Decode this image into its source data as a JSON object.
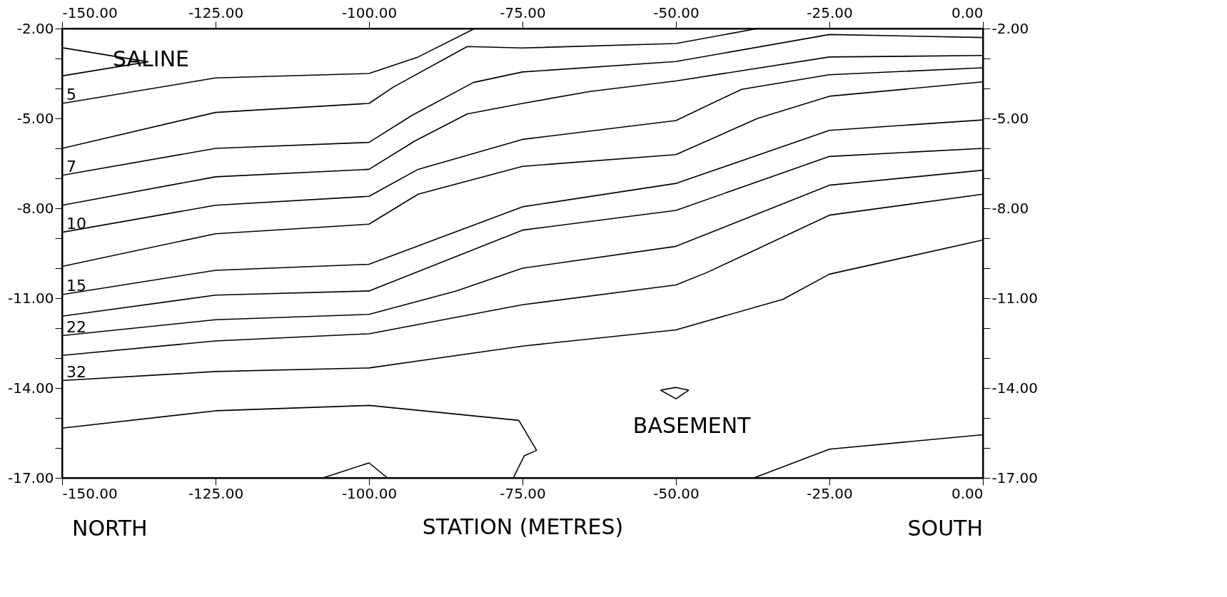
{
  "chart_data": {
    "type": "line",
    "xlabel": "STATION  (METRES)",
    "annotations": [
      "SALINE",
      "BASEMENT",
      "NORTH",
      "SOUTH"
    ],
    "xlim": [
      -150,
      0
    ],
    "ylim": [
      -17,
      -2
    ],
    "x2lim": [
      -150,
      0
    ],
    "y2lim": [
      -17,
      -2
    ],
    "xticks": [
      {
        "value": -150,
        "label": "-150.00"
      },
      {
        "value": -125,
        "label": "-125.00"
      },
      {
        "value": -100,
        "label": "-100.00"
      },
      {
        "value": -75,
        "label": "-75.00"
      },
      {
        "value": -50,
        "label": "-50.00"
      },
      {
        "value": -25,
        "label": "-25.00"
      },
      {
        "value": 0,
        "label": "0.00"
      }
    ],
    "x2ticks": [
      {
        "value": -150,
        "label": "-150.00"
      },
      {
        "value": -125,
        "label": "-125.00"
      },
      {
        "value": -100,
        "label": "-100.00"
      },
      {
        "value": -75,
        "label": "-75.00"
      },
      {
        "value": -50,
        "label": "-50.00"
      },
      {
        "value": -25,
        "label": "-25.00"
      },
      {
        "value": 0,
        "label": "0.00"
      }
    ],
    "yticks": [
      {
        "value": -2,
        "label": "-2.00"
      },
      {
        "value": -3,
        "label": null
      },
      {
        "value": -4,
        "label": null
      },
      {
        "value": -5,
        "label": "-5.00"
      },
      {
        "value": -6,
        "label": null
      },
      {
        "value": -7,
        "label": null
      },
      {
        "value": -8,
        "label": "-8.00"
      },
      {
        "value": -9,
        "label": null
      },
      {
        "value": -10,
        "label": null
      },
      {
        "value": -11,
        "label": "-11.00"
      },
      {
        "value": -12,
        "label": null
      },
      {
        "value": -13,
        "label": null
      },
      {
        "value": -14,
        "label": "-14.00"
      },
      {
        "value": -15,
        "label": null
      },
      {
        "value": -16,
        "label": null
      },
      {
        "value": -17,
        "label": "-17.00"
      }
    ],
    "y2ticks": [
      {
        "value": -2,
        "label": "-2.00"
      },
      {
        "value": -3,
        "label": null
      },
      {
        "value": -4,
        "label": null
      },
      {
        "value": -5,
        "label": "-5.00"
      },
      {
        "value": -6,
        "label": null
      },
      {
        "value": -7,
        "label": null
      },
      {
        "value": -8,
        "label": "-8.00"
      },
      {
        "value": -9,
        "label": null
      },
      {
        "value": -10,
        "label": null
      },
      {
        "value": -11,
        "label": "-11.00"
      },
      {
        "value": -12,
        "label": null
      },
      {
        "value": -13,
        "label": null
      },
      {
        "value": -14,
        "label": "-14.00"
      },
      {
        "value": -15,
        "label": null
      },
      {
        "value": -16,
        "label": null
      },
      {
        "value": -17,
        "label": "-17.00"
      }
    ],
    "grid": false,
    "marker": "none",
    "line_style": "solid",
    "series": [
      {
        "color": "#000000",
        "x": [
          -150,
          -136,
          -150
        ],
        "values": [
          -2.64,
          -3.11,
          -3.58
        ]
      },
      {
        "name": "5",
        "color": "#000000",
        "x": [
          -150,
          -125,
          -100,
          -92,
          -82.8
        ],
        "values": [
          -4.5,
          -3.65,
          -3.5,
          -2.95,
          -2.0
        ]
      },
      {
        "color": "#000000",
        "x": [
          -150,
          -125,
          -100,
          -96,
          -84,
          -75,
          -50,
          -36.7
        ],
        "values": [
          -6.0,
          -4.8,
          -4.5,
          -3.95,
          -2.6,
          -2.65,
          -2.5,
          -2.0
        ]
      },
      {
        "name": "7",
        "color": "#000000",
        "x": [
          -150,
          -125,
          -100,
          -93,
          -83,
          -75,
          -50,
          -25,
          0
        ],
        "values": [
          -6.9,
          -6.0,
          -5.8,
          -4.9,
          -3.8,
          -3.45,
          -3.1,
          -2.2,
          -2.3
        ]
      },
      {
        "color": "#000000",
        "x": [
          -150,
          -125,
          -100,
          -92.5,
          -84,
          -75,
          -64,
          -50,
          -25,
          0
        ],
        "values": [
          -7.9,
          -6.95,
          -6.7,
          -5.75,
          -4.85,
          -4.5,
          -4.1,
          -3.75,
          -2.95,
          -2.9
        ]
      },
      {
        "name": "10",
        "color": "#000000",
        "x": [
          -150,
          -125,
          -100,
          -92,
          -75,
          -50,
          -39.3,
          -25,
          0
        ],
        "values": [
          -8.8,
          -7.9,
          -7.6,
          -6.7,
          -5.7,
          -5.07,
          -4.03,
          -3.54,
          -3.31
        ]
      },
      {
        "color": "#000000",
        "x": [
          -150,
          -125,
          -100,
          -92,
          -75,
          -50,
          -36.7,
          -25,
          0
        ],
        "values": [
          -9.94,
          -8.85,
          -8.53,
          -7.53,
          -6.6,
          -6.21,
          -5.0,
          -4.26,
          -3.78
        ]
      },
      {
        "name": "15",
        "color": "#000000",
        "x": [
          -150,
          -125,
          -100,
          -75,
          -50,
          -25,
          0
        ],
        "values": [
          -10.88,
          -10.07,
          -9.87,
          -7.95,
          -7.17,
          -5.4,
          -5.05
        ]
      },
      {
        "color": "#000000",
        "x": [
          -150,
          -125,
          -100,
          -75,
          -50,
          -25,
          0
        ],
        "values": [
          -11.6,
          -10.9,
          -10.76,
          -8.73,
          -8.07,
          -6.27,
          -6.0
        ]
      },
      {
        "name": "22",
        "color": "#000000",
        "x": [
          -150,
          -125,
          -100,
          -85.8,
          -75,
          -50,
          -25,
          0
        ],
        "values": [
          -12.25,
          -11.72,
          -11.54,
          -10.76,
          -10.0,
          -9.27,
          -7.23,
          -6.73
        ]
      },
      {
        "color": "#000000",
        "x": [
          -150,
          -125,
          -100,
          -75,
          -50,
          -44.9,
          -25,
          0
        ],
        "values": [
          -12.91,
          -12.43,
          -12.19,
          -11.22,
          -10.56,
          -10.14,
          -8.23,
          -7.53
        ]
      },
      {
        "name": "32",
        "color": "#000000",
        "x": [
          -150,
          -125,
          -100,
          -75,
          -50,
          -32.6,
          -25,
          0
        ],
        "values": [
          -13.75,
          -13.45,
          -13.33,
          -12.6,
          -12.06,
          -11.04,
          -10.2,
          -9.06
        ]
      },
      {
        "color": "#000000",
        "x": [
          -150,
          -125,
          -100,
          -75.6,
          -72.7,
          -74.7,
          -76.5
        ],
        "values": [
          -15.34,
          -14.76,
          -14.58,
          -15.08,
          -16.08,
          -16.26,
          -17.0
        ]
      },
      {
        "color": "#000000",
        "x": [
          -107.5,
          -100,
          -97
        ],
        "values": [
          -17.0,
          -16.5,
          -17.0
        ]
      },
      {
        "color": "#000000",
        "x": [
          -52.5,
          -50,
          -47.9
        ],
        "values": [
          -14.07,
          -13.98,
          -14.07
        ]
      },
      {
        "color": "#000000",
        "x": [
          -52.5,
          -50,
          -47.9
        ],
        "values": [
          -14.07,
          -14.36,
          -14.07
        ]
      },
      {
        "color": "#000000",
        "x": [
          -37.3,
          -25,
          0
        ],
        "values": [
          -17.0,
          -16.04,
          -15.56
        ]
      }
    ]
  }
}
